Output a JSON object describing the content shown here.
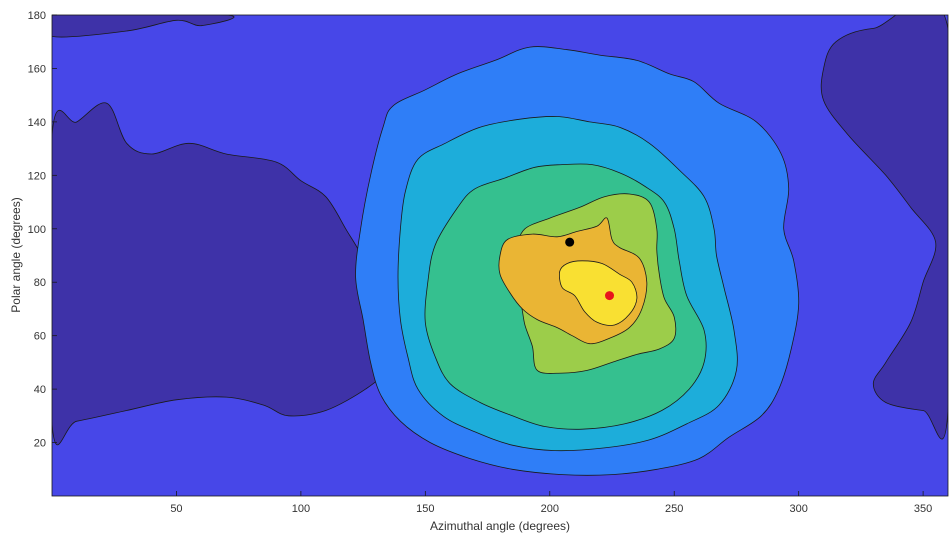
{
  "chart_data": {
    "type": "contour",
    "title": "",
    "xlabel": "Azimuthal angle (degrees)",
    "ylabel": "Polar angle (degrees)",
    "xlim": [
      0,
      360
    ],
    "ylim": [
      0,
      180
    ],
    "x_ticks": [
      50,
      100,
      150,
      200,
      250,
      300,
      350
    ],
    "y_ticks": [
      20,
      40,
      60,
      80,
      100,
      120,
      140,
      160,
      180
    ],
    "grid": false,
    "legend": "none",
    "colors": {
      "level_0": "#3e32a8",
      "level_1": "#4747e8",
      "level_2": "#2f7ef7",
      "level_3": "#1dadda",
      "level_4": "#35c08f",
      "level_5": "#9ccd4a",
      "level_6": "#eab534",
      "level_7": "#f9e032",
      "line": "#1a1a1a",
      "marker_black": "#000000",
      "marker_red": "#e8141c"
    },
    "levels": [
      {
        "level": 0,
        "note": "lowest region, left",
        "points": [
          [
            0,
            135
          ],
          [
            10,
            140
          ],
          [
            22,
            147
          ],
          [
            30,
            132
          ],
          [
            40,
            128
          ],
          [
            55,
            132
          ],
          [
            70,
            128
          ],
          [
            90,
            125
          ],
          [
            100,
            118
          ],
          [
            110,
            112
          ],
          [
            118,
            100
          ],
          [
            125,
            88
          ],
          [
            128,
            72
          ],
          [
            130,
            56
          ],
          [
            132,
            46
          ],
          [
            126,
            40
          ],
          [
            110,
            32
          ],
          [
            95,
            30
          ],
          [
            85,
            34
          ],
          [
            70,
            37
          ],
          [
            50,
            36
          ],
          [
            30,
            32
          ],
          [
            10,
            28
          ],
          [
            0,
            27
          ]
        ]
      },
      {
        "level": 0,
        "note": "lowest region, top-left strip",
        "points": [
          [
            0,
            180
          ],
          [
            0,
            172
          ],
          [
            30,
            174
          ],
          [
            50,
            178
          ],
          [
            60,
            176
          ],
          [
            70,
            180
          ]
        ]
      },
      {
        "level": 0,
        "note": "lowest region, right",
        "points": [
          [
            360,
            175
          ],
          [
            330,
            175
          ],
          [
            315,
            170
          ],
          [
            310,
            160
          ],
          [
            310,
            148
          ],
          [
            320,
            135
          ],
          [
            335,
            120
          ],
          [
            345,
            108
          ],
          [
            355,
            95
          ],
          [
            350,
            80
          ],
          [
            345,
            65
          ],
          [
            335,
            50
          ],
          [
            330,
            42
          ],
          [
            335,
            35
          ],
          [
            350,
            32
          ],
          [
            360,
            32
          ]
        ]
      },
      {
        "level": 2,
        "points": [
          [
            137,
            146
          ],
          [
            150,
            152
          ],
          [
            163,
            158
          ],
          [
            178,
            163
          ],
          [
            192,
            168
          ],
          [
            207,
            167
          ],
          [
            220,
            165
          ],
          [
            235,
            163
          ],
          [
            248,
            158
          ],
          [
            258,
            155
          ],
          [
            268,
            147
          ],
          [
            283,
            140
          ],
          [
            293,
            128
          ],
          [
            296,
            115
          ],
          [
            294,
            100
          ],
          [
            298,
            88
          ],
          [
            300,
            72
          ],
          [
            297,
            55
          ],
          [
            292,
            40
          ],
          [
            285,
            30
          ],
          [
            272,
            22
          ],
          [
            260,
            14
          ],
          [
            243,
            10
          ],
          [
            225,
            8
          ],
          [
            205,
            8
          ],
          [
            185,
            10
          ],
          [
            168,
            14
          ],
          [
            152,
            20
          ],
          [
            140,
            28
          ],
          [
            132,
            38
          ],
          [
            128,
            50
          ],
          [
            125,
            66
          ],
          [
            122,
            82
          ],
          [
            124,
            100
          ],
          [
            128,
            120
          ],
          [
            133,
            138
          ]
        ]
      },
      {
        "level": 3,
        "points": [
          [
            147,
            126
          ],
          [
            158,
            132
          ],
          [
            172,
            138
          ],
          [
            188,
            141
          ],
          [
            203,
            142
          ],
          [
            216,
            140
          ],
          [
            228,
            138
          ],
          [
            240,
            132
          ],
          [
            252,
            122
          ],
          [
            262,
            112
          ],
          [
            266,
            100
          ],
          [
            267,
            90
          ],
          [
            270,
            78
          ],
          [
            274,
            62
          ],
          [
            275,
            47
          ],
          [
            268,
            34
          ],
          [
            255,
            27
          ],
          [
            240,
            21
          ],
          [
            222,
            18
          ],
          [
            202,
            17
          ],
          [
            185,
            19
          ],
          [
            170,
            24
          ],
          [
            157,
            30
          ],
          [
            147,
            40
          ],
          [
            143,
            52
          ],
          [
            140,
            66
          ],
          [
            139,
            82
          ],
          [
            140,
            100
          ],
          [
            142,
            114
          ]
        ]
      },
      {
        "level": 4,
        "points": [
          [
            163,
            108
          ],
          [
            170,
            115
          ],
          [
            182,
            119
          ],
          [
            194,
            123
          ],
          [
            205,
            124
          ],
          [
            217,
            124
          ],
          [
            228,
            121
          ],
          [
            238,
            116
          ],
          [
            246,
            110
          ],
          [
            250,
            100
          ],
          [
            252,
            88
          ],
          [
            255,
            75
          ],
          [
            262,
            62
          ],
          [
            262,
            50
          ],
          [
            256,
            40
          ],
          [
            245,
            32
          ],
          [
            230,
            27
          ],
          [
            213,
            25
          ],
          [
            198,
            26
          ],
          [
            185,
            30
          ],
          [
            172,
            35
          ],
          [
            160,
            42
          ],
          [
            154,
            52
          ],
          [
            150,
            65
          ],
          [
            151,
            80
          ],
          [
            154,
            94
          ]
        ]
      },
      {
        "level": 5,
        "points": [
          [
            186,
            93
          ],
          [
            190,
            100
          ],
          [
            200,
            104
          ],
          [
            212,
            108
          ],
          [
            222,
            112
          ],
          [
            232,
            113
          ],
          [
            240,
            110
          ],
          [
            243,
            100
          ],
          [
            243,
            92
          ],
          [
            244,
            83
          ],
          [
            246,
            74
          ],
          [
            250,
            67
          ],
          [
            250,
            59
          ],
          [
            244,
            55
          ],
          [
            235,
            53
          ],
          [
            225,
            50
          ],
          [
            215,
            47
          ],
          [
            205,
            46
          ],
          [
            195,
            47
          ],
          [
            193,
            56
          ],
          [
            190,
            64
          ],
          [
            188,
            73
          ],
          [
            183,
            80
          ],
          [
            180,
            87
          ]
        ]
      },
      {
        "level": 6,
        "points": [
          [
            180,
            90
          ],
          [
            183,
            96
          ],
          [
            193,
            98
          ],
          [
            203,
            97
          ],
          [
            211,
            99
          ],
          [
            219,
            101
          ],
          [
            223,
            104
          ],
          [
            225,
            96
          ],
          [
            228,
            93
          ],
          [
            236,
            89
          ],
          [
            239,
            80
          ],
          [
            237,
            70
          ],
          [
            232,
            63
          ],
          [
            224,
            59
          ],
          [
            216,
            57
          ],
          [
            209,
            60
          ],
          [
            203,
            63
          ],
          [
            195,
            66
          ],
          [
            189,
            70
          ],
          [
            184,
            76
          ],
          [
            180,
            83
          ]
        ]
      },
      {
        "level": 7,
        "points": [
          [
            207,
            87
          ],
          [
            213,
            88
          ],
          [
            221,
            87
          ],
          [
            228,
            83
          ],
          [
            233,
            80
          ],
          [
            235,
            74
          ],
          [
            232,
            68
          ],
          [
            226,
            64
          ],
          [
            219,
            65
          ],
          [
            214,
            69
          ],
          [
            210,
            75
          ],
          [
            205,
            78
          ],
          [
            204,
            84
          ]
        ]
      }
    ],
    "markers": [
      {
        "name": "black-marker",
        "x": 208,
        "y": 95,
        "color": "#000000"
      },
      {
        "name": "red-marker",
        "x": 224,
        "y": 75,
        "color": "#e8141c"
      }
    ]
  }
}
